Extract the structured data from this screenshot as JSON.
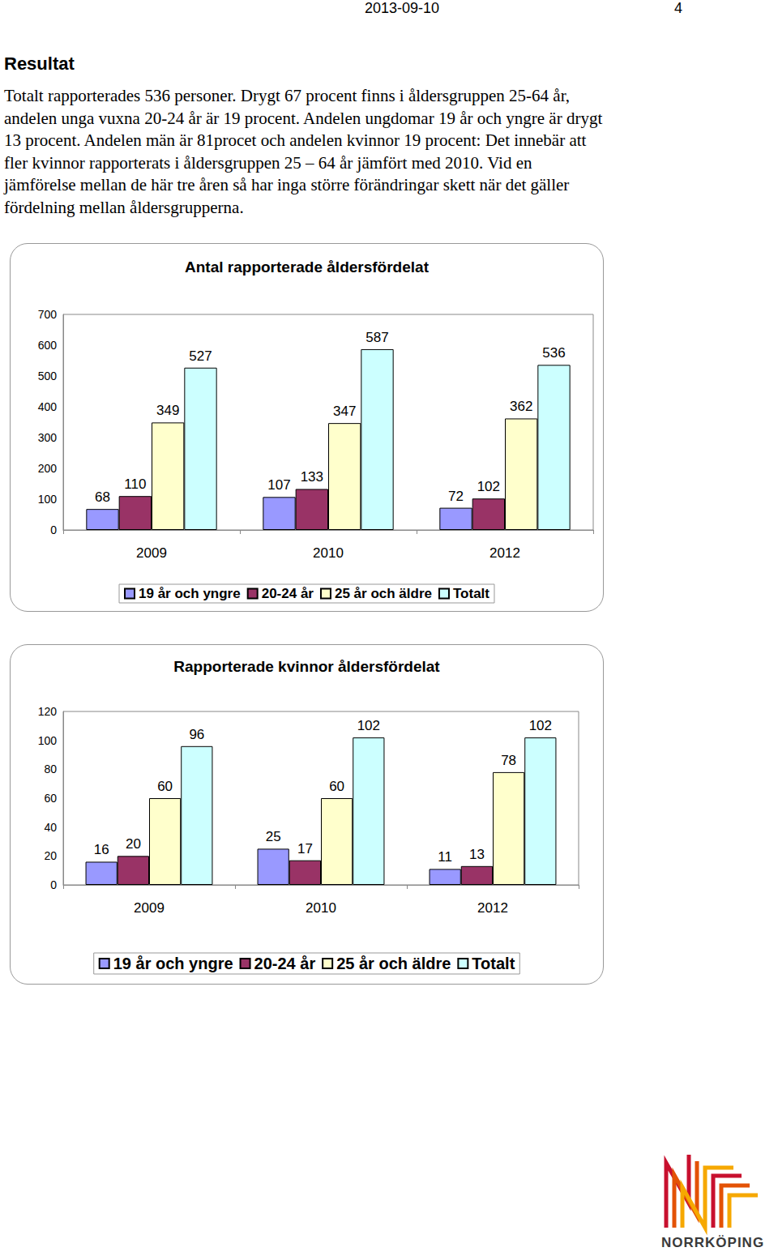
{
  "header": {
    "date": "2013-09-10",
    "page": "4"
  },
  "heading": "Resultat",
  "paragraph_lines": [
    "Totalt rapporterades 536 personer. Drygt 67 procent finns i åldersgruppen 25-64 år,",
    "andelen unga vuxna 20-24 år är 19 procent. Andelen ungdomar 19 år och yngre är drygt",
    "13 procent. Andelen män är 81procet och andelen kvinnor 19 procent: Det innebär att",
    "fler kvinnor rapporterats i åldersgruppen 25 – 64 år jämfört med 2010. Vid en",
    "jämförelse mellan de här tre åren så har inga större förändringar skett när det gäller",
    "fördelning mellan åldersgrupperna."
  ],
  "chart_data": [
    {
      "type": "bar",
      "title": "Antal rapporterade åldersfördelat",
      "categories": [
        "2009",
        "2010",
        "2012"
      ],
      "series": [
        {
          "name": "19 år och yngre",
          "color": "#9999ff",
          "values": [
            68,
            107,
            72
          ]
        },
        {
          "name": "20-24 år",
          "color": "#993366",
          "values": [
            110,
            133,
            102
          ]
        },
        {
          "name": "25 år och äldre",
          "color": "#ffffcc",
          "values": [
            349,
            347,
            362
          ]
        },
        {
          "name": "Totalt",
          "color": "#ccffff",
          "values": [
            527,
            587,
            536
          ]
        }
      ],
      "ylim": [
        0,
        700
      ],
      "yticks": [
        0,
        100,
        200,
        300,
        400,
        500,
        600,
        700
      ],
      "grid": false,
      "legend": "bottom",
      "data_labels": true
    },
    {
      "type": "bar",
      "title": "Rapporterade kvinnor åldersfördelat",
      "categories": [
        "2009",
        "2010",
        "2012"
      ],
      "series": [
        {
          "name": "19 år och yngre",
          "color": "#9999ff",
          "values": [
            16,
            25,
            11
          ]
        },
        {
          "name": "20-24 år",
          "color": "#993366",
          "values": [
            20,
            17,
            13
          ]
        },
        {
          "name": "25 år och äldre",
          "color": "#ffffcc",
          "values": [
            60,
            60,
            78
          ]
        },
        {
          "name": "Totalt",
          "color": "#ccffff",
          "values": [
            96,
            102,
            102
          ]
        }
      ],
      "ylim": [
        0,
        120
      ],
      "yticks": [
        0,
        20,
        40,
        60,
        80,
        100,
        120
      ],
      "grid": false,
      "legend": "bottom",
      "data_labels": true
    }
  ],
  "logo_text": "NORRKÖPING"
}
